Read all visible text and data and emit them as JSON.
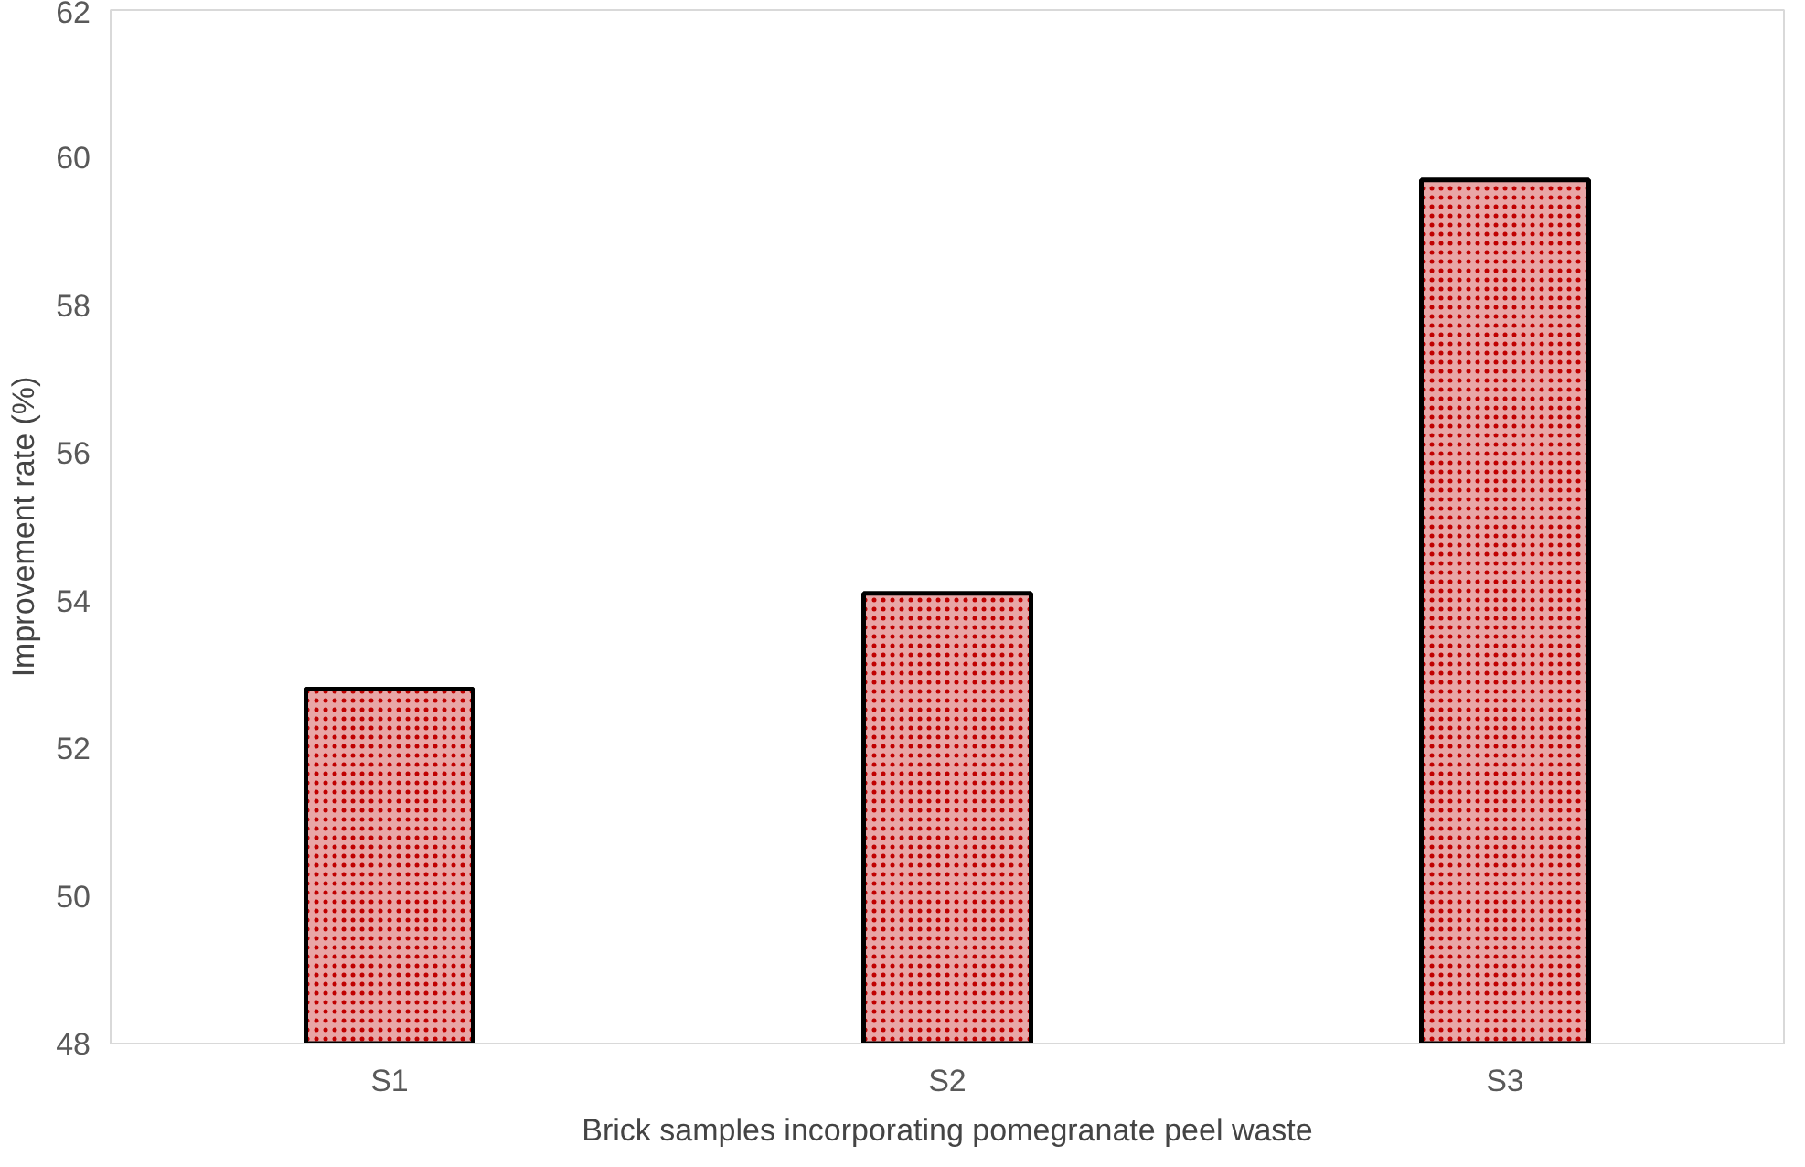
{
  "chart_data": {
    "type": "bar",
    "xlabel": "Brick samples incorporating pomegranate peel waste",
    "ylabel": "Improvement rate (%)",
    "categories": [
      "S1",
      "S2",
      "S3"
    ],
    "values": [
      52.8,
      54.1,
      59.7
    ],
    "color": "#c00000",
    "ylim": [
      48,
      62
    ],
    "yticks": [
      48,
      50,
      52,
      54,
      56,
      58,
      60,
      62
    ],
    "grid": false
  }
}
